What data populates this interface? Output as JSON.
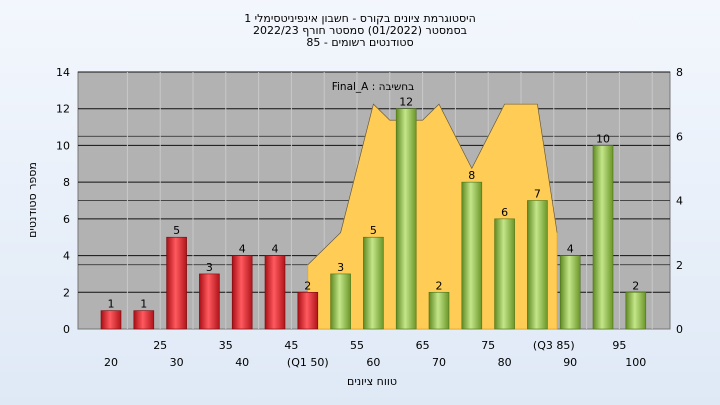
{
  "chart_data": {
    "type": "bar",
    "title_lines": [
      "היסטוגרמת ציונים בקורס - חשבון אינפיניטסימלי 1",
      "בסמסטר  (01/2022)  סמסטר חורף 2022/23",
      "סטודנטים רשומים - 85"
    ],
    "xlabel": "טווח ציונים",
    "ylabel": "מספר סטודנטים",
    "annotation": "Final_A : בחשיבה",
    "ylim": [
      0,
      14
    ],
    "y_ticks": [
      0,
      2,
      4,
      6,
      8,
      10,
      12,
      14
    ],
    "y2lim": [
      0,
      8
    ],
    "y2_ticks": [
      0,
      2,
      4,
      6,
      8
    ],
    "x_tick_labels": [
      {
        "label": "20",
        "row": 1
      },
      {
        "label": "25",
        "row": 0
      },
      {
        "label": "30",
        "row": 1
      },
      {
        "label": "35",
        "row": 0
      },
      {
        "label": "40",
        "row": 1
      },
      {
        "label": "45",
        "row": 0
      },
      {
        "label": "(Q1 50)",
        "row": 1
      },
      {
        "label": "55",
        "row": 0
      },
      {
        "label": "60",
        "row": 1
      },
      {
        "label": "65",
        "row": 0
      },
      {
        "label": "70",
        "row": 1
      },
      {
        "label": "75",
        "row": 0
      },
      {
        "label": "80",
        "row": 1
      },
      {
        "label": "(Q3 85)",
        "row": 0
      },
      {
        "label": "90",
        "row": 1
      },
      {
        "label": "95",
        "row": 0
      },
      {
        "label": "100",
        "row": 1
      }
    ],
    "bars": [
      {
        "category": "20",
        "value": 1,
        "color": "red"
      },
      {
        "category": "25",
        "value": 1,
        "color": "red"
      },
      {
        "category": "30",
        "value": 5,
        "color": "red"
      },
      {
        "category": "35",
        "value": 3,
        "color": "red"
      },
      {
        "category": "40",
        "value": 4,
        "color": "red"
      },
      {
        "category": "45",
        "value": 4,
        "color": "red"
      },
      {
        "category": "50",
        "value": 2,
        "color": "red"
      },
      {
        "category": "55",
        "value": 3,
        "color": "green"
      },
      {
        "category": "60",
        "value": 5,
        "color": "green"
      },
      {
        "category": "65",
        "value": 12,
        "color": "green"
      },
      {
        "category": "70",
        "value": 2,
        "color": "green"
      },
      {
        "category": "75",
        "value": 8,
        "color": "green"
      },
      {
        "category": "80",
        "value": 6,
        "color": "green"
      },
      {
        "category": "85",
        "value": 7,
        "color": "green"
      },
      {
        "category": "90",
        "value": 4,
        "color": "green"
      },
      {
        "category": "95",
        "value": 10,
        "color": "green"
      },
      {
        "category": "100",
        "value": 2,
        "color": "green"
      }
    ],
    "area_series": {
      "axis": "secondary",
      "color": "#ffcc55",
      "points": [
        {
          "x": 50,
          "y": 2
        },
        {
          "x": 55,
          "y": 3
        },
        {
          "x": 60,
          "y": 7
        },
        {
          "x": 62.5,
          "y": 6.5
        },
        {
          "x": 65,
          "y": 6.5
        },
        {
          "x": 67.5,
          "y": 6.5
        },
        {
          "x": 70,
          "y": 7
        },
        {
          "x": 75,
          "y": 5
        },
        {
          "x": 80,
          "y": 7
        },
        {
          "x": 85,
          "y": 7
        },
        {
          "x": 88,
          "y": 3
        }
      ]
    },
    "grid": true
  },
  "colors": {
    "plot_background": "#b2b2b2",
    "red_bar": "#d8242b",
    "green_bar": "#8dba45",
    "area": "#ffcc55"
  }
}
